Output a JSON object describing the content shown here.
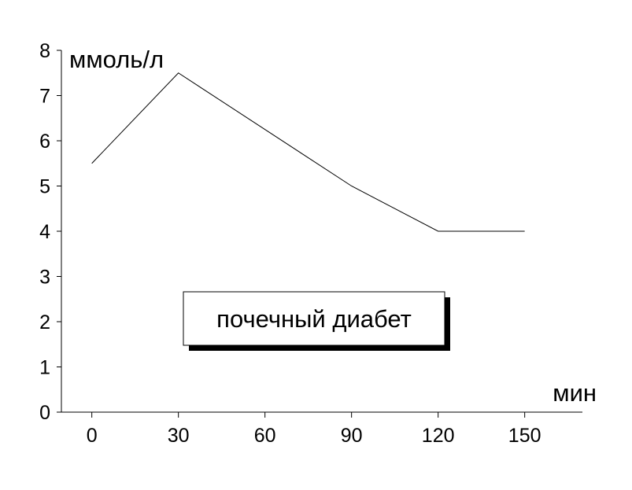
{
  "chart_data": {
    "type": "line",
    "x": [
      0,
      30,
      90,
      120,
      150
    ],
    "values": [
      5.5,
      7.5,
      5,
      4,
      4
    ],
    "color": "#000000",
    "xlim": [
      -10,
      170
    ],
    "xticks": [
      0,
      30,
      60,
      90,
      120,
      150
    ],
    "ylim": [
      0,
      8
    ],
    "yticks": [
      0,
      1,
      2,
      3,
      4,
      5,
      6,
      7,
      8
    ],
    "y_label": "ммоль/л",
    "x_label": "мин",
    "annotation": "почечный диабет"
  }
}
